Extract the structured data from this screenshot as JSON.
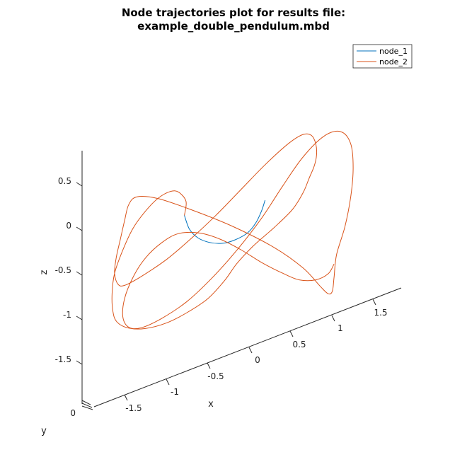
{
  "chart_data": {
    "type": "line",
    "title_lines": [
      "Node trajectories plot for results file:",
      "example_double_pendulum.mbd"
    ],
    "xlabel": "x",
    "ylabel": "y",
    "zlabel": "z",
    "view": "3d",
    "x_ticks": [
      "-1.5",
      "-1",
      "-0.5",
      "0",
      "0.5",
      "1",
      "1.5"
    ],
    "y_ticks": [
      "0"
    ],
    "z_ticks": [
      "0.5",
      "0",
      "-0.5",
      "-1",
      "-1.5"
    ],
    "legend": {
      "position": "top-right",
      "entries": [
        {
          "name": "node_1",
          "color": "#0072BD"
        },
        {
          "name": "node_2",
          "color": "#D95319"
        }
      ]
    },
    "series": [
      {
        "name": "node_1",
        "color": "#0072BD",
        "x": [
          -0.88,
          -0.82,
          -0.72,
          -0.58,
          -0.42,
          -0.27,
          -0.12,
          -0.02,
          0.05,
          0.09
        ],
        "z": [
          0.64,
          0.32,
          0.1,
          -0.04,
          -0.1,
          -0.06,
          0.06,
          0.26,
          0.52,
          0.74
        ]
      },
      {
        "name": "node_2",
        "color": "#D95319",
        "x": [
          -0.88,
          -0.86,
          -0.95,
          -1.05,
          -1.2,
          -1.35,
          -1.5,
          -1.62,
          -1.72,
          -1.75,
          -1.74,
          -1.69,
          -1.55,
          -1.35,
          -1.1,
          -0.85,
          -0.6,
          -0.4,
          -0.25,
          -0.05,
          0.2,
          0.42,
          0.55,
          0.62,
          0.68,
          0.71,
          0.7,
          0.65,
          0.55,
          0.38,
          0.1,
          -0.2,
          -0.5,
          -0.8,
          -1.1,
          -1.4,
          -1.6,
          -1.68,
          -1.72,
          -1.7,
          -1.65,
          -1.6,
          -1.55,
          -1.45,
          -1.2,
          -0.8,
          -0.3,
          0.2,
          0.55,
          0.75,
          0.85,
          0.9,
          0.92,
          0.95,
          1.05,
          1.12,
          1.15,
          1.12,
          1.0,
          0.8,
          0.55,
          0.3,
          0.05,
          -0.25,
          -0.55,
          -0.85,
          -1.15,
          -1.4,
          -1.55,
          -1.62,
          -1.6,
          -1.5,
          -1.35,
          -1.15,
          -0.95,
          -0.7,
          -0.45,
          -0.2,
          0.05,
          0.3,
          0.5,
          0.7,
          0.85,
          0.92
        ],
        "z": [
          0.64,
          0.95,
          1.18,
          1.22,
          1.1,
          0.85,
          0.5,
          0.05,
          -0.45,
          -0.9,
          -1.3,
          -1.55,
          -1.72,
          -1.78,
          -1.72,
          -1.55,
          -1.3,
          -0.95,
          -0.6,
          -0.25,
          0.1,
          0.45,
          0.8,
          1.1,
          1.35,
          1.6,
          1.85,
          2.05,
          2.1,
          1.95,
          1.55,
          1.05,
          0.55,
          0.1,
          -0.3,
          -0.6,
          -0.75,
          -0.7,
          -0.45,
          -0.1,
          0.3,
          0.7,
          1.05,
          1.2,
          1.1,
          0.75,
          0.25,
          -0.35,
          -0.9,
          -1.35,
          -1.55,
          -1.5,
          -1.2,
          -0.7,
          -0.1,
          0.55,
          1.2,
          1.75,
          2.05,
          2.0,
          1.6,
          1.0,
          0.35,
          -0.3,
          -0.85,
          -1.3,
          -1.6,
          -1.75,
          -1.7,
          -1.45,
          -1.05,
          -0.6,
          -0.2,
          0.1,
          0.25,
          0.2,
          0.0,
          -0.3,
          -0.65,
          -0.95,
          -1.15,
          -1.2,
          -1.1,
          -0.9
        ]
      }
    ]
  }
}
